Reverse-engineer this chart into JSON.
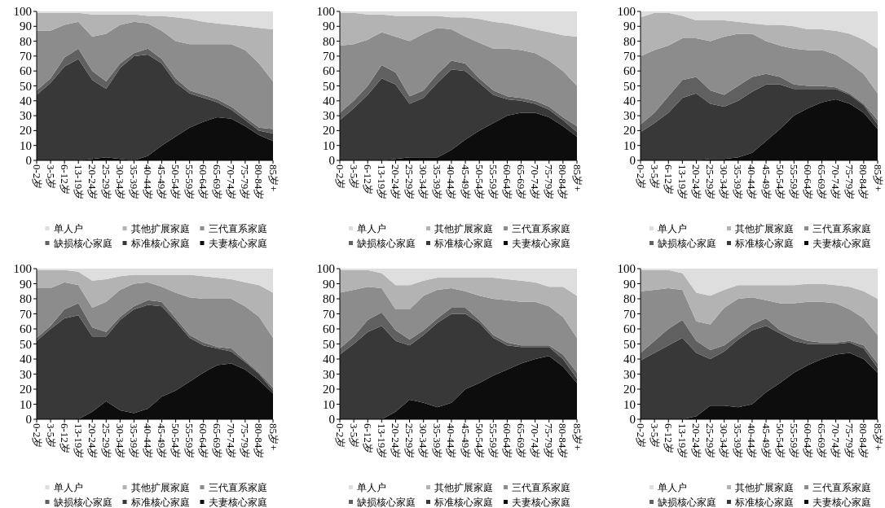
{
  "chart_data": [
    {
      "type": "area",
      "stacked": true,
      "legend": "bottom",
      "grid": false,
      "ylim": [
        0,
        100
      ],
      "yticks": [
        0,
        10,
        20,
        30,
        40,
        50,
        60,
        70,
        80,
        90,
        100
      ],
      "categories": [
        "0-2岁",
        "3-5岁",
        "6-12岁",
        "13-19岁",
        "20-24岁",
        "25-29岁",
        "30-34岁",
        "35-39岁",
        "40-44岁",
        "45-49岁",
        "50-54岁",
        "55-59岁",
        "60-64岁",
        "65-69岁",
        "70-74岁",
        "75-79岁",
        "80-84岁",
        "85岁+"
      ],
      "series": [
        {
          "name": "夫妻核心家庭",
          "color": "#0d0d0d",
          "values": [
            0,
            0,
            0,
            0,
            1,
            2,
            1,
            0,
            3,
            10,
            16,
            22,
            26,
            29,
            28,
            23,
            17,
            13
          ]
        },
        {
          "name": "标准核心家庭",
          "color": "#383838",
          "values": [
            44,
            52,
            63,
            68,
            53,
            46,
            61,
            70,
            68,
            55,
            36,
            23,
            16,
            10,
            6,
            4,
            3,
            5
          ]
        },
        {
          "name": "缺损核心家庭",
          "color": "#606060",
          "values": [
            3,
            3,
            6,
            7,
            6,
            5,
            3,
            2,
            4,
            3,
            3,
            2,
            2,
            2,
            2,
            2,
            2,
            3
          ]
        },
        {
          "name": "三代直系家庭",
          "color": "#8c8c8c",
          "values": [
            40,
            32,
            22,
            18,
            23,
            32,
            26,
            21,
            17,
            19,
            25,
            31,
            34,
            37,
            42,
            45,
            43,
            32
          ]
        },
        {
          "name": "其他扩展家庭",
          "color": "#b3b3b3",
          "values": [
            12,
            12,
            8,
            6,
            15,
            13,
            7,
            5,
            5,
            10,
            16,
            17,
            15,
            14,
            13,
            16,
            24,
            35
          ]
        },
        {
          "name": "单人户",
          "color": "#dedede",
          "values": [
            1,
            1,
            1,
            1,
            2,
            2,
            2,
            2,
            3,
            3,
            4,
            5,
            7,
            8,
            9,
            10,
            11,
            12
          ]
        }
      ]
    },
    {
      "type": "area",
      "stacked": true,
      "legend": "bottom",
      "grid": false,
      "ylim": [
        0,
        100
      ],
      "yticks": [
        0,
        10,
        20,
        30,
        40,
        50,
        60,
        70,
        80,
        90,
        100
      ],
      "categories": [
        "0-2岁",
        "3-5岁",
        "6-12岁",
        "13-19岁",
        "20-24岁",
        "25-29岁",
        "30-34岁",
        "35-39岁",
        "40-44岁",
        "45-49岁",
        "50-54岁",
        "55-59岁",
        "60-64岁",
        "65-69岁",
        "70-74岁",
        "75-79岁",
        "80-84岁",
        "85岁+"
      ],
      "series": [
        {
          "name": "夫妻核心家庭",
          "color": "#0d0d0d",
          "values": [
            0,
            0,
            0,
            0,
            1,
            2,
            2,
            2,
            7,
            14,
            20,
            25,
            30,
            32,
            32,
            29,
            23,
            16
          ]
        },
        {
          "name": "标准核心家庭",
          "color": "#383838",
          "values": [
            27,
            35,
            44,
            55,
            50,
            36,
            40,
            50,
            54,
            46,
            32,
            19,
            11,
            8,
            6,
            5,
            4,
            3
          ]
        },
        {
          "name": "缺损核心家庭",
          "color": "#606060",
          "values": [
            5,
            5,
            6,
            9,
            8,
            5,
            5,
            6,
            6,
            5,
            3,
            3,
            2,
            2,
            2,
            2,
            2,
            4
          ]
        },
        {
          "name": "三代直系家庭",
          "color": "#8c8c8c",
          "values": [
            45,
            38,
            31,
            22,
            24,
            37,
            38,
            31,
            21,
            18,
            24,
            28,
            32,
            32,
            32,
            31,
            31,
            27
          ]
        },
        {
          "name": "其他扩展家庭",
          "color": "#b3b3b3",
          "values": [
            22,
            21,
            17,
            12,
            14,
            17,
            12,
            8,
            8,
            13,
            16,
            18,
            17,
            16,
            16,
            19,
            24,
            33
          ]
        },
        {
          "name": "单人户",
          "color": "#dedede",
          "values": [
            1,
            1,
            2,
            2,
            3,
            3,
            3,
            3,
            4,
            4,
            5,
            7,
            8,
            10,
            12,
            14,
            16,
            17
          ]
        }
      ]
    },
    {
      "type": "area",
      "stacked": true,
      "legend": "bottom",
      "grid": false,
      "ylim": [
        0,
        100
      ],
      "yticks": [
        0,
        10,
        20,
        30,
        40,
        50,
        60,
        70,
        80,
        90,
        100
      ],
      "categories": [
        "0-2岁",
        "3-5岁",
        "6-12岁",
        "13-19岁",
        "20-24岁",
        "25-29岁",
        "30-34岁",
        "35-39岁",
        "40-44岁",
        "45-49岁",
        "50-54岁",
        "55-59岁",
        "60-64岁",
        "65-69岁",
        "70-74岁",
        "75-79岁",
        "80-84岁",
        "85岁+"
      ],
      "series": [
        {
          "name": "夫妻核心家庭",
          "color": "#0d0d0d",
          "values": [
            0,
            0,
            0,
            0,
            0,
            1,
            1,
            2,
            5,
            13,
            21,
            30,
            35,
            39,
            41,
            38,
            32,
            21
          ]
        },
        {
          "name": "标准核心家庭",
          "color": "#383838",
          "values": [
            19,
            25,
            32,
            42,
            45,
            37,
            35,
            38,
            41,
            38,
            30,
            18,
            13,
            9,
            7,
            6,
            5,
            3
          ]
        },
        {
          "name": "缺损核心家庭",
          "color": "#606060",
          "values": [
            5,
            7,
            11,
            12,
            11,
            9,
            8,
            10,
            10,
            7,
            5,
            3,
            2,
            2,
            1,
            1,
            1,
            3
          ]
        },
        {
          "name": "三代直系家庭",
          "color": "#8c8c8c",
          "values": [
            46,
            42,
            34,
            28,
            26,
            33,
            39,
            35,
            29,
            22,
            21,
            24,
            24,
            24,
            22,
            20,
            20,
            18
          ]
        },
        {
          "name": "其他扩展家庭",
          "color": "#b3b3b3",
          "values": [
            26,
            25,
            22,
            15,
            12,
            14,
            11,
            8,
            7,
            11,
            14,
            15,
            14,
            14,
            16,
            20,
            23,
            30
          ]
        },
        {
          "name": "单人户",
          "color": "#dedede",
          "values": [
            4,
            1,
            1,
            3,
            6,
            6,
            6,
            7,
            8,
            9,
            9,
            10,
            12,
            12,
            13,
            15,
            19,
            25
          ]
        }
      ]
    },
    {
      "type": "area",
      "stacked": true,
      "legend": "bottom",
      "grid": false,
      "ylim": [
        0,
        100
      ],
      "yticks": [
        0,
        10,
        20,
        30,
        40,
        50,
        60,
        70,
        80,
        90,
        100
      ],
      "categories": [
        "0-2岁",
        "3-5岁",
        "6-12岁",
        "13-19岁",
        "20-24岁",
        "25-29岁",
        "30-34岁",
        "35-39岁",
        "40-44岁",
        "45-49岁",
        "50-54岁",
        "55-59岁",
        "60-64岁",
        "65-69岁",
        "70-74岁",
        "75-79岁",
        "80-84岁",
        "85岁+"
      ],
      "series": [
        {
          "name": "夫妻核心家庭",
          "color": "#0d0d0d",
          "values": [
            0,
            0,
            0,
            0,
            5,
            12,
            6,
            4,
            7,
            15,
            19,
            25,
            31,
            36,
            37,
            33,
            26,
            17
          ]
        },
        {
          "name": "标准核心家庭",
          "color": "#383838",
          "values": [
            52,
            60,
            67,
            69,
            50,
            43,
            60,
            69,
            69,
            60,
            46,
            29,
            18,
            11,
            8,
            5,
            4,
            2
          ]
        },
        {
          "name": "缺损核心家庭",
          "color": "#606060",
          "values": [
            2,
            2,
            6,
            8,
            6,
            3,
            2,
            2,
            3,
            3,
            2,
            2,
            2,
            1,
            2,
            1,
            1,
            2
          ]
        },
        {
          "name": "三代直系家庭",
          "color": "#8c8c8c",
          "values": [
            33,
            25,
            18,
            12,
            13,
            20,
            18,
            15,
            12,
            10,
            17,
            25,
            29,
            32,
            33,
            36,
            37,
            33
          ]
        },
        {
          "name": "其他扩展家庭",
          "color": "#b3b3b3",
          "values": [
            12,
            12,
            8,
            9,
            18,
            15,
            9,
            6,
            5,
            8,
            12,
            15,
            15,
            14,
            13,
            16,
            21,
            30
          ]
        },
        {
          "name": "单人户",
          "color": "#dedede",
          "values": [
            1,
            1,
            1,
            2,
            8,
            7,
            5,
            4,
            4,
            4,
            4,
            4,
            5,
            6,
            7,
            9,
            11,
            16
          ]
        }
      ]
    },
    {
      "type": "area",
      "stacked": true,
      "legend": "bottom",
      "grid": false,
      "ylim": [
        0,
        100
      ],
      "yticks": [
        0,
        10,
        20,
        30,
        40,
        50,
        60,
        70,
        80,
        90,
        100
      ],
      "categories": [
        "0-2岁",
        "3-5岁",
        "6-12岁",
        "13-19岁",
        "20-24岁",
        "25-29岁",
        "30-34岁",
        "35-39岁",
        "40-44岁",
        "45-49岁",
        "50-54岁",
        "55-59岁",
        "60-64岁",
        "65-69岁",
        "70-74岁",
        "75-79岁",
        "80-84岁",
        "85岁+"
      ],
      "series": [
        {
          "name": "夫妻核心家庭",
          "color": "#0d0d0d",
          "values": [
            0,
            0,
            0,
            0,
            5,
            13,
            11,
            8,
            11,
            20,
            24,
            29,
            33,
            37,
            40,
            42,
            35,
            24
          ]
        },
        {
          "name": "标准核心家庭",
          "color": "#383838",
          "values": [
            43,
            50,
            58,
            62,
            47,
            36,
            45,
            56,
            59,
            50,
            40,
            25,
            16,
            11,
            8,
            6,
            5,
            3
          ]
        },
        {
          "name": "缺损核心家庭",
          "color": "#606060",
          "values": [
            4,
            5,
            8,
            9,
            7,
            4,
            3,
            3,
            4,
            4,
            2,
            2,
            2,
            1,
            1,
            1,
            3,
            4
          ]
        },
        {
          "name": "三代直系家庭",
          "color": "#8c8c8c",
          "values": [
            37,
            31,
            22,
            16,
            14,
            20,
            23,
            19,
            13,
            11,
            16,
            24,
            28,
            29,
            29,
            26,
            25,
            23
          ]
        },
        {
          "name": "其他扩展家庭",
          "color": "#b3b3b3",
          "values": [
            15,
            13,
            11,
            10,
            16,
            16,
            10,
            8,
            7,
            9,
            12,
            14,
            14,
            14,
            13,
            13,
            20,
            28
          ]
        },
        {
          "name": "单人户",
          "color": "#dedede",
          "values": [
            1,
            1,
            1,
            3,
            11,
            11,
            8,
            6,
            6,
            6,
            6,
            6,
            7,
            8,
            9,
            12,
            12,
            18
          ]
        }
      ]
    },
    {
      "type": "area",
      "stacked": true,
      "legend": "bottom",
      "grid": false,
      "ylim": [
        0,
        100
      ],
      "yticks": [
        0,
        10,
        20,
        30,
        40,
        50,
        60,
        70,
        80,
        90,
        100
      ],
      "categories": [
        "0-2岁",
        "3-5岁",
        "6-12岁",
        "13-19岁",
        "20-24岁",
        "25-29岁",
        "30-34岁",
        "35-39岁",
        "40-44岁",
        "45-49岁",
        "50-54岁",
        "55-59岁",
        "60-64岁",
        "65-69岁",
        "70-74岁",
        "75-79岁",
        "80-84岁",
        "85岁+"
      ],
      "series": [
        {
          "name": "夫妻核心家庭",
          "color": "#0d0d0d",
          "values": [
            0,
            0,
            0,
            0,
            2,
            9,
            9,
            8,
            10,
            18,
            24,
            31,
            36,
            40,
            43,
            44,
            40,
            31
          ]
        },
        {
          "name": "标准核心家庭",
          "color": "#383838",
          "values": [
            39,
            44,
            49,
            54,
            42,
            31,
            36,
            45,
            49,
            44,
            33,
            21,
            14,
            10,
            7,
            7,
            7,
            3
          ]
        },
        {
          "name": "缺损核心家庭",
          "color": "#606060",
          "values": [
            5,
            8,
            11,
            12,
            8,
            6,
            4,
            3,
            4,
            5,
            2,
            3,
            2,
            1,
            1,
            1,
            2,
            3
          ]
        },
        {
          "name": "三代直系家庭",
          "color": "#8c8c8c",
          "values": [
            41,
            34,
            27,
            20,
            13,
            17,
            25,
            24,
            18,
            12,
            18,
            22,
            26,
            27,
            26,
            21,
            18,
            19
          ]
        },
        {
          "name": "其他扩展家庭",
          "color": "#b3b3b3",
          "values": [
            14,
            13,
            12,
            11,
            19,
            19,
            12,
            9,
            8,
            10,
            12,
            12,
            12,
            12,
            12,
            15,
            18,
            24
          ]
        },
        {
          "name": "单人户",
          "color": "#dedede",
          "values": [
            1,
            1,
            1,
            3,
            16,
            18,
            14,
            11,
            11,
            11,
            11,
            11,
            10,
            10,
            11,
            12,
            15,
            20
          ]
        }
      ]
    }
  ]
}
